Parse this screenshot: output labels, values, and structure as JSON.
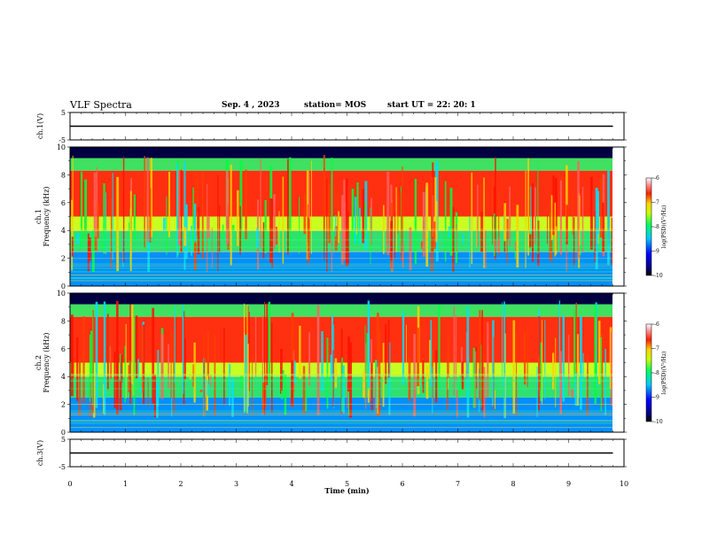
{
  "header": {
    "title": "VLF Spectra",
    "date": "Sep. 4 , 2023",
    "station": "station= MOS",
    "start_ut": "start UT =  22: 20: 1"
  },
  "chart_data": [
    {
      "id": "ch1-voltage",
      "type": "line",
      "ylabel": "ch.1(V)",
      "ylim": [
        -5,
        5
      ],
      "yticks": [
        "5",
        "-5"
      ],
      "xlim": [
        0,
        10
      ],
      "series": [
        {
          "x": [
            0,
            9.8
          ],
          "y": [
            0,
            0
          ]
        }
      ]
    },
    {
      "id": "ch1-spectrogram",
      "type": "heatmap",
      "ylabel": "ch.1\nFrequency (kHz)",
      "ylim": [
        0,
        10
      ],
      "yticks": [
        "0",
        "2",
        "4",
        "6",
        "8",
        "10"
      ],
      "xlim": [
        0,
        10
      ],
      "colorbar": {
        "label": "log(PSD)(V²/Hz)",
        "range": [
          -10,
          -6
        ],
        "ticks": [
          "-6",
          "-7",
          "-8",
          "-9",
          "-10"
        ]
      }
    },
    {
      "id": "ch2-spectrogram",
      "type": "heatmap",
      "ylabel": "ch.2\nFrequency (kHz)",
      "ylim": [
        0,
        10
      ],
      "yticks": [
        "0",
        "2",
        "4",
        "6",
        "8",
        "10"
      ],
      "xlim": [
        0,
        10
      ],
      "colorbar": {
        "label": "log(PSD)(V²/Hz)",
        "range": [
          -10,
          -6
        ],
        "ticks": [
          "-6",
          "-7",
          "-8",
          "-9",
          "-10"
        ]
      }
    },
    {
      "id": "ch3-voltage",
      "type": "line",
      "ylabel": "ch.3(V)",
      "ylim": [
        -5,
        5
      ],
      "yticks": [
        "5",
        "-5"
      ],
      "xlim": [
        0,
        10
      ],
      "xlabel": "Time (min)",
      "xticks": [
        "0",
        "1",
        "2",
        "3",
        "4",
        "5",
        "6",
        "7",
        "8",
        "9",
        "10"
      ],
      "series": [
        {
          "x": [
            0,
            9.8
          ],
          "y": [
            0,
            0
          ]
        }
      ]
    }
  ]
}
